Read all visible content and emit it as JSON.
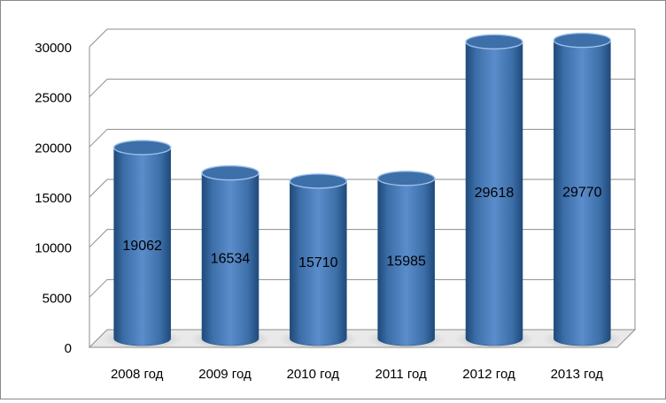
{
  "chart_data": {
    "type": "bar",
    "style": "3d-cylinder",
    "categories": [
      "2008 год",
      "2009 год",
      "2010 год",
      "2011 год",
      "2012 год",
      "2013 год"
    ],
    "values": [
      19062,
      16534,
      15710,
      15985,
      29618,
      29770
    ],
    "data_labels": [
      "19062",
      "16534",
      "15710",
      "15985",
      "29618",
      "29770"
    ],
    "ylim": [
      0,
      30000
    ],
    "yticks": [
      0,
      5000,
      10000,
      15000,
      20000,
      25000,
      30000
    ],
    "ytick_labels": [
      "0",
      "5000",
      "10000",
      "15000",
      "20000",
      "25000",
      "30000"
    ],
    "title": "",
    "xlabel": "",
    "ylabel": "",
    "grid": true,
    "legend": "none",
    "colors": {
      "bar_body": "#4a7ebb",
      "bar_dark": "#1f4a7a",
      "bar_light": "#8fb4e3",
      "bar_top": "#3d6fa8",
      "gridline": "#8c8c8c",
      "text": "#000000"
    }
  }
}
